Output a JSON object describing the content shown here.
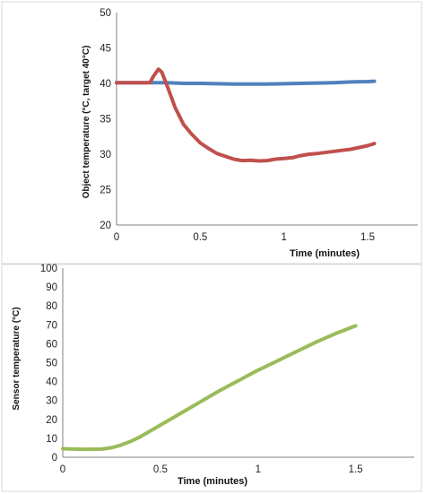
{
  "chart_data": [
    {
      "type": "line",
      "title": "",
      "xlabel": "Time (minutes)",
      "ylabel": "Object temperature (°C, target 40°C)",
      "xlim": [
        0,
        1.8
      ],
      "ylim": [
        20,
        50
      ],
      "xticks": [
        0,
        0.5,
        1,
        1.5
      ],
      "xtick_labels": [
        "0",
        "0.5",
        "1",
        "1.5"
      ],
      "yticks": [
        20,
        25,
        30,
        35,
        40,
        45,
        50
      ],
      "ytick_labels": [
        "20",
        "25",
        "30",
        "35",
        "40",
        "45",
        "50"
      ],
      "grid": false,
      "legend": "none",
      "series": [
        {
          "color": "#4F81BD",
          "x": [
            0,
            0.1,
            0.2,
            0.3,
            0.4,
            0.5,
            0.6,
            0.7,
            0.8,
            0.9,
            1.0,
            1.1,
            1.2,
            1.3,
            1.4,
            1.5,
            1.54
          ],
          "y": [
            40.1,
            40.1,
            40.1,
            40.1,
            40.0,
            40.0,
            39.95,
            39.9,
            39.9,
            39.9,
            39.95,
            40.0,
            40.05,
            40.1,
            40.2,
            40.25,
            40.3
          ]
        },
        {
          "color": "#C0504D",
          "x": [
            0,
            0.1,
            0.2,
            0.22,
            0.25,
            0.27,
            0.3,
            0.35,
            0.4,
            0.45,
            0.5,
            0.55,
            0.6,
            0.65,
            0.7,
            0.75,
            0.8,
            0.85,
            0.9,
            0.95,
            1.0,
            1.05,
            1.1,
            1.15,
            1.2,
            1.3,
            1.4,
            1.5,
            1.54
          ],
          "y": [
            40.1,
            40.1,
            40.1,
            41.0,
            42.0,
            41.6,
            39.8,
            36.6,
            34.2,
            32.8,
            31.6,
            30.8,
            30.1,
            29.7,
            29.3,
            29.1,
            29.15,
            29.05,
            29.1,
            29.3,
            29.4,
            29.5,
            29.8,
            30.0,
            30.1,
            30.4,
            30.7,
            31.2,
            31.5
          ]
        }
      ]
    },
    {
      "type": "line",
      "title": "",
      "xlabel": "Time (minutes)",
      "ylabel": "Sensor temperature (°C)",
      "xlim": [
        0,
        1.8
      ],
      "ylim": [
        0,
        100
      ],
      "xticks": [
        0,
        0.5,
        1,
        1.5
      ],
      "xtick_labels": [
        "0",
        "0.5",
        "1",
        "1.5"
      ],
      "yticks": [
        0,
        10,
        20,
        30,
        40,
        50,
        60,
        70,
        80,
        90,
        100
      ],
      "ytick_labels": [
        "0",
        "10",
        "20",
        "30",
        "40",
        "50",
        "60",
        "70",
        "80",
        "90",
        "100"
      ],
      "grid": false,
      "legend": "none",
      "series": [
        {
          "color": "#9BBB59",
          "x": [
            0,
            0.1,
            0.2,
            0.25,
            0.3,
            0.35,
            0.4,
            0.5,
            0.6,
            0.7,
            0.8,
            0.9,
            1.0,
            1.1,
            1.2,
            1.3,
            1.4,
            1.5
          ],
          "y": [
            4.5,
            4.2,
            4.3,
            5.0,
            6.5,
            8.5,
            11.0,
            17.0,
            23.0,
            29.0,
            35.0,
            40.5,
            46.0,
            51.0,
            56.0,
            61.0,
            65.5,
            69.5
          ]
        }
      ]
    }
  ]
}
